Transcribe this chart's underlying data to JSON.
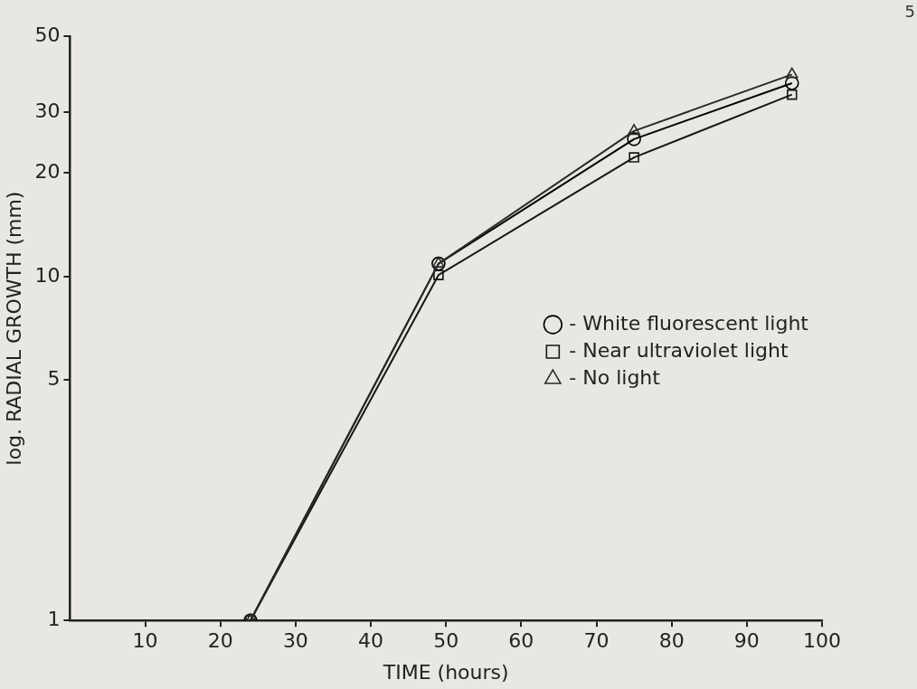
{
  "chart_data": {
    "type": "line",
    "xlabel": "TIME (hours)",
    "ylabel": "log. RADIAL GROWTH (mm)",
    "x": [
      24,
      49,
      75,
      96
    ],
    "series": [
      {
        "name": "- White fluorescent light",
        "color": "#000000",
        "marker": "circle",
        "values": [
          1,
          10.9,
          25.1,
          36.5
        ]
      },
      {
        "name": "- Near ultraviolet light",
        "color": "#161616",
        "marker": "square",
        "values": [
          1,
          10.1,
          22.2,
          33.8
        ]
      },
      {
        "name": "- No light",
        "color": "#2a2a2a",
        "marker": "triangle",
        "values": [
          1,
          10.9,
          26.5,
          38.7
        ]
      }
    ],
    "xlim": [
      0,
      100
    ],
    "xticks": [
      10,
      20,
      30,
      40,
      50,
      60,
      70,
      80,
      90,
      100
    ],
    "ylim": [
      1,
      50
    ],
    "yticks": [
      1,
      5,
      10,
      20,
      30,
      50
    ],
    "log": "y",
    "grid": false,
    "legend": "right",
    "line_style": "solid",
    "annotations": [
      "5"
    ]
  }
}
